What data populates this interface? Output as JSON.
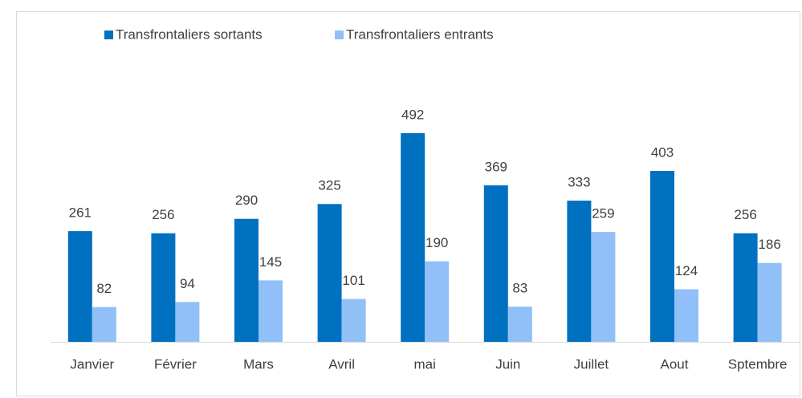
{
  "chart_data": {
    "type": "bar",
    "categories": [
      "Janvier",
      "Février",
      "Mars",
      "Avril",
      "mai",
      "Juin",
      "Juillet",
      "Aout",
      "Sptembre"
    ],
    "series": [
      {
        "name": "Transfrontaliers sortants",
        "color": "#0070c0",
        "values": [
          261,
          256,
          290,
          325,
          492,
          369,
          333,
          403,
          256
        ]
      },
      {
        "name": "Transfrontaliers entrants",
        "color": "#91c0f8",
        "values": [
          82,
          94,
          145,
          101,
          190,
          83,
          259,
          124,
          186
        ]
      }
    ],
    "legend": "top-left"
  }
}
